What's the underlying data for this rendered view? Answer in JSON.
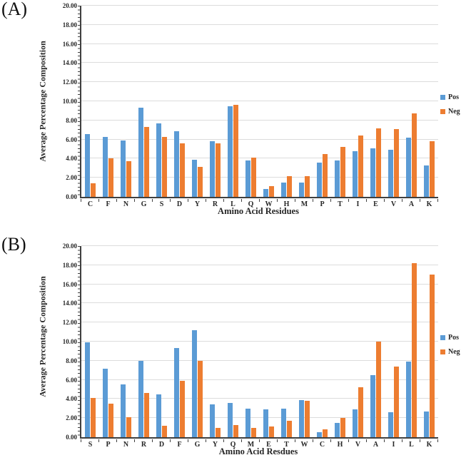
{
  "figure_background": "#ffffff",
  "colors": {
    "pos_blue": "#5B9BD5",
    "neg_orange": "#ED7D31",
    "gridline": "#dcdcdc",
    "axis": "#404040",
    "text": "#262626"
  },
  "chart_data": [
    {
      "type": "bar",
      "panel_label": "(A)",
      "title": "",
      "xlabel": "Amino Acid Residues",
      "ylabel": "Average Percentage Composition",
      "ylim": [
        0,
        20
      ],
      "ytick_step": 2,
      "ytick_format_decimals": 2,
      "grid": true,
      "legend_position": "right",
      "categories": [
        "C",
        "F",
        "N",
        "G",
        "S",
        "D",
        "Y",
        "R",
        "L",
        "Q",
        "W",
        "H",
        "M",
        "P",
        "T",
        "I",
        "E",
        "V",
        "A",
        "K"
      ],
      "series": [
        {
          "name": "Pos",
          "color": "#5B9BD5",
          "values": [
            6.6,
            6.3,
            5.9,
            9.3,
            7.7,
            6.9,
            3.9,
            5.8,
            9.5,
            3.8,
            0.8,
            1.5,
            1.5,
            3.6,
            3.8,
            4.8,
            5.1,
            4.9,
            6.2,
            3.3
          ]
        },
        {
          "name": "Neg",
          "color": "#ED7D31",
          "values": [
            1.4,
            4.0,
            3.7,
            7.3,
            6.3,
            5.6,
            3.1,
            5.6,
            9.6,
            4.1,
            1.1,
            2.2,
            2.2,
            4.5,
            5.2,
            6.4,
            7.2,
            7.1,
            8.7,
            5.8
          ]
        }
      ]
    },
    {
      "type": "bar",
      "panel_label": "(B)",
      "title": "",
      "xlabel": "Amino Acid Resdues",
      "ylabel": "Average Percentage Composition",
      "ylim": [
        0,
        20
      ],
      "ytick_step": 2,
      "ytick_format_decimals": 2,
      "grid": true,
      "legend_position": "right",
      "categories": [
        "S",
        "P",
        "N",
        "R",
        "D",
        "F",
        "G",
        "Y",
        "Q",
        "M",
        "E",
        "T",
        "W",
        "C",
        "H",
        "V",
        "A",
        "I",
        "L",
        "K"
      ],
      "series": [
        {
          "name": "Pos",
          "color": "#5B9BD5",
          "values": [
            9.9,
            7.2,
            5.5,
            8.0,
            4.5,
            9.3,
            11.2,
            3.4,
            3.6,
            3.0,
            2.9,
            3.0,
            3.9,
            0.5,
            1.5,
            2.9,
            6.5,
            2.6,
            7.9,
            2.7
          ]
        },
        {
          "name": "Neg",
          "color": "#ED7D31",
          "values": [
            4.1,
            3.5,
            2.1,
            4.6,
            1.2,
            5.9,
            8.0,
            1.0,
            1.3,
            1.0,
            1.1,
            1.7,
            3.8,
            0.8,
            2.0,
            5.2,
            10.0,
            7.4,
            18.2,
            17.0
          ]
        }
      ]
    }
  ]
}
